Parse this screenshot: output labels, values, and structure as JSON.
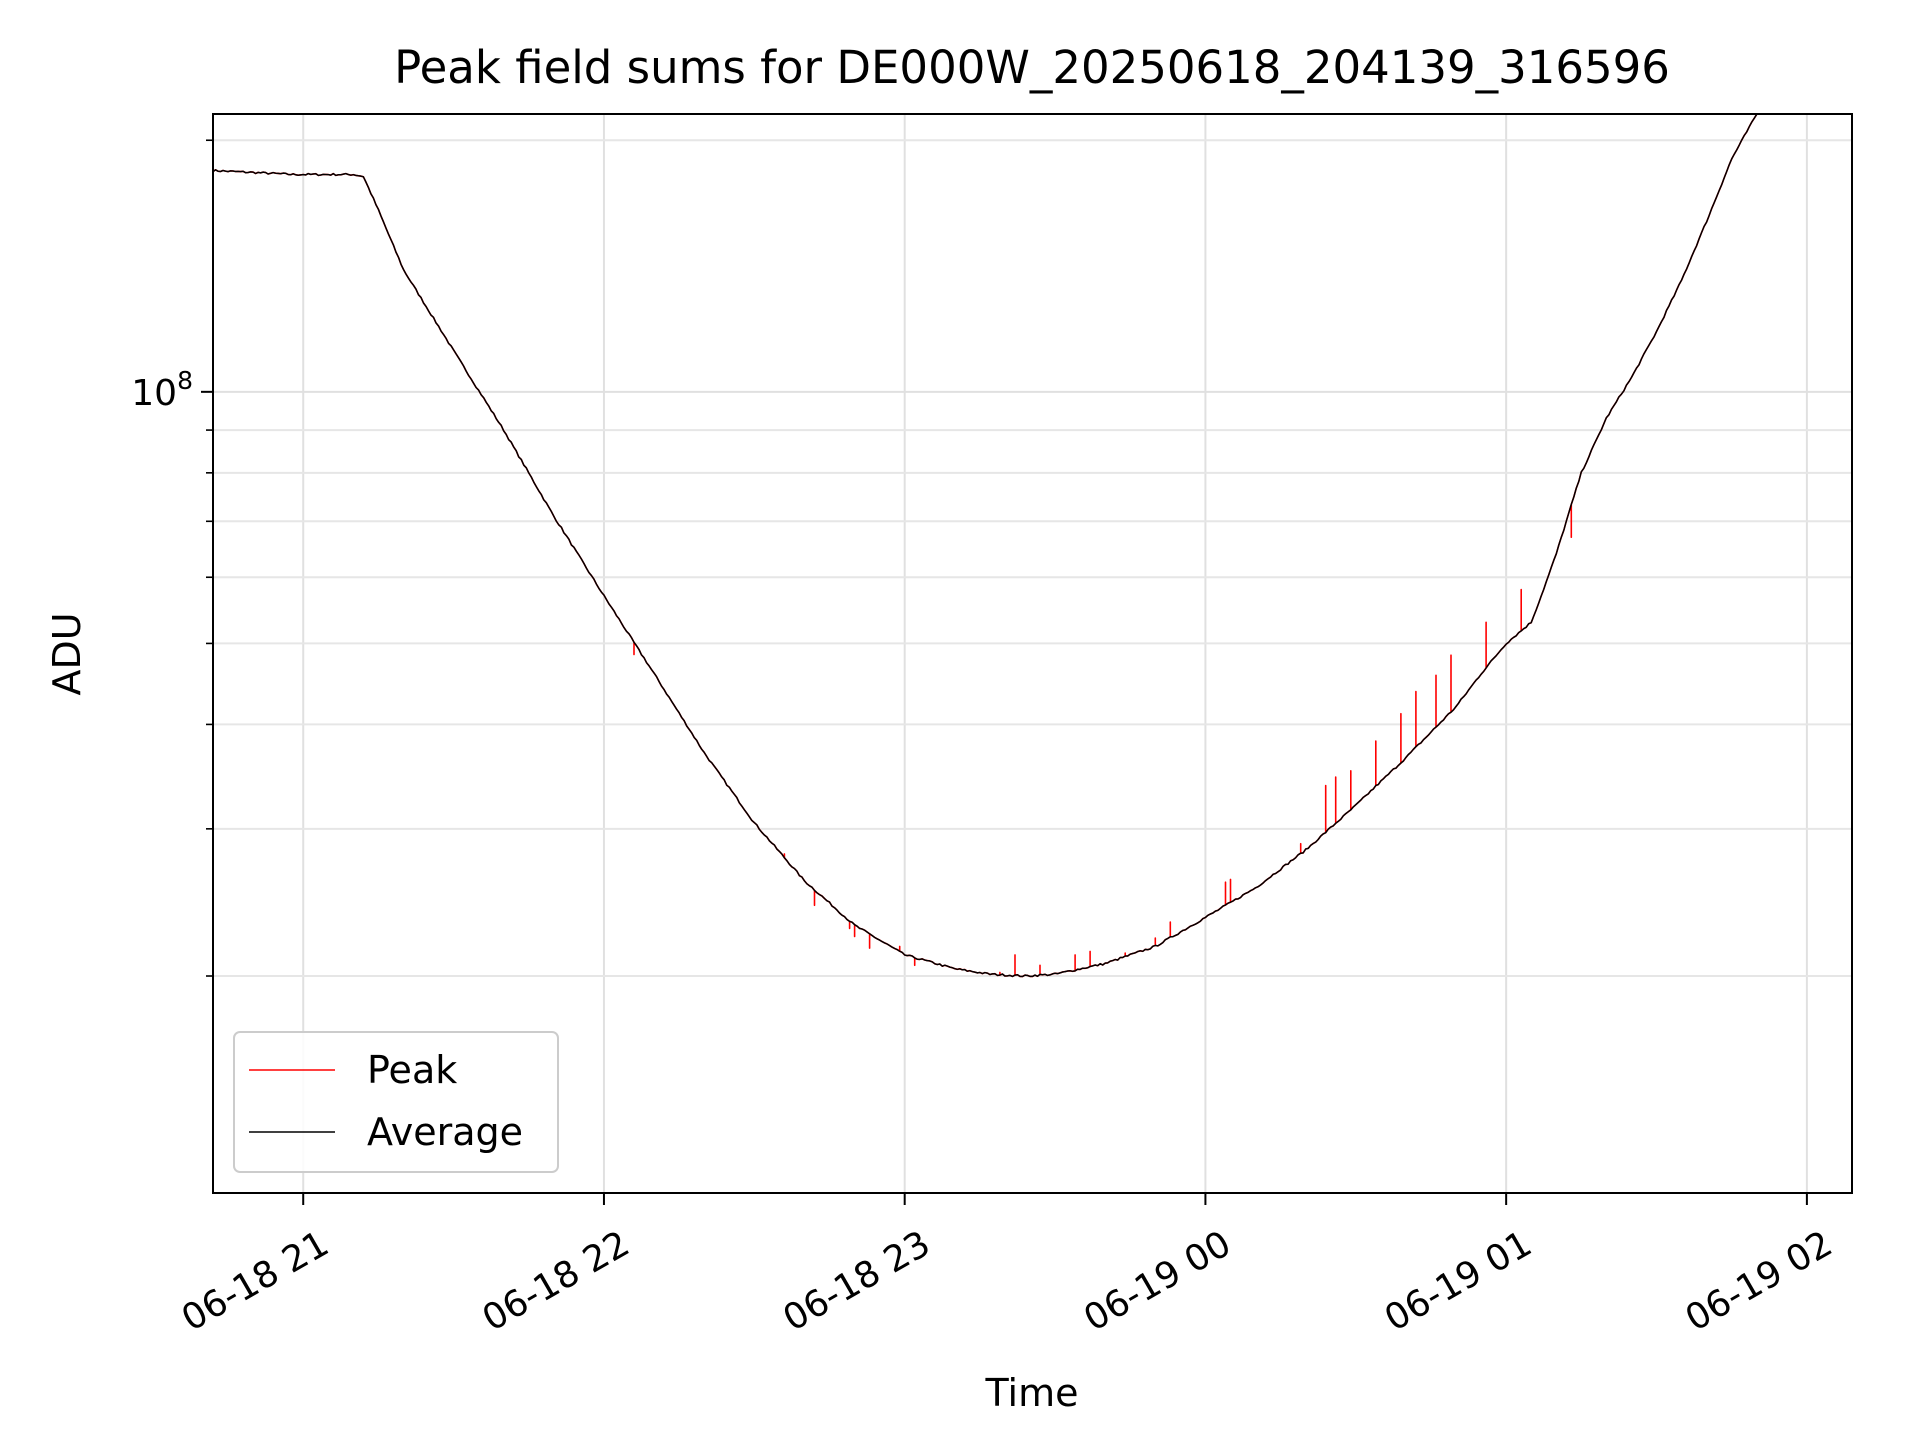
{
  "chart_data": {
    "type": "line",
    "title": "Peak field sums for DE000W_20250618_204139_316596",
    "xlabel": "Time",
    "ylabel": "ADU",
    "y_scale": "log",
    "grid": true,
    "legend_position": "lower-left",
    "xlim": [
      "06-18 20:42",
      "06-19 02:09"
    ],
    "ylim": [
      11000000,
      215000000
    ],
    "x_ticks": [
      "06-18 21",
      "06-18 22",
      "06-18 23",
      "06-19 00",
      "06-19 01",
      "06-19 02"
    ],
    "y_ticks": [
      {
        "value": 100000000,
        "base": "10",
        "exponent": "8"
      }
    ],
    "y_minor_ticks": [
      20000000,
      30000000,
      40000000,
      50000000,
      60000000,
      70000000,
      80000000,
      90000000,
      200000000
    ],
    "series": [
      {
        "name": "Peak",
        "color": "#ff0000"
      },
      {
        "name": "Average",
        "color": "#000000"
      }
    ],
    "average_points": [
      [
        "06-18 20:42",
        184000000
      ],
      [
        "06-18 20:50",
        183000000
      ],
      [
        "06-18 20:58",
        182000000
      ],
      [
        "06-18 21:10",
        182000000
      ],
      [
        "06-18 21:12",
        181000000
      ],
      [
        "06-18 21:15",
        165000000
      ],
      [
        "06-18 21:20",
        140000000
      ],
      [
        "06-18 21:30",
        112000000
      ],
      [
        "06-18 21:40",
        90000000
      ],
      [
        "06-18 21:50",
        71000000
      ],
      [
        "06-18 22:00",
        57000000
      ],
      [
        "06-18 22:10",
        46000000
      ],
      [
        "06-18 22:20",
        37000000
      ],
      [
        "06-18 22:30",
        30500000
      ],
      [
        "06-18 22:40",
        26000000
      ],
      [
        "06-18 22:50",
        23000000
      ],
      [
        "06-18 23:00",
        21200000
      ],
      [
        "06-18 23:10",
        20400000
      ],
      [
        "06-18 23:17",
        20100000
      ],
      [
        "06-18 23:24",
        20000000
      ],
      [
        "06-18 23:30",
        20100000
      ],
      [
        "06-18 23:40",
        20700000
      ],
      [
        "06-18 23:50",
        21700000
      ],
      [
        "06-19 00:00",
        23500000
      ],
      [
        "06-19 00:10",
        25500000
      ],
      [
        "06-19 00:20",
        28300000
      ],
      [
        "06-19 00:30",
        32000000
      ],
      [
        "06-19 00:40",
        36500000
      ],
      [
        "06-19 00:50",
        42000000
      ],
      [
        "06-19 00:55",
        46000000
      ],
      [
        "06-19 01:00",
        50000000
      ],
      [
        "06-19 01:05",
        53000000
      ],
      [
        "06-19 01:07",
        57000000
      ],
      [
        "06-19 01:10",
        64000000
      ],
      [
        "06-19 01:15",
        80000000
      ],
      [
        "06-19 01:20",
        93000000
      ],
      [
        "06-19 01:25",
        104000000
      ],
      [
        "06-19 01:30",
        118000000
      ],
      [
        "06-19 01:35",
        136000000
      ],
      [
        "06-19 01:40",
        160000000
      ],
      [
        "06-19 01:45",
        190000000
      ],
      [
        "06-19 01:50",
        215000000
      ]
    ],
    "peak_spikes": [
      [
        "06-18 22:06",
        48500000
      ],
      [
        "06-18 22:36",
        28000000
      ],
      [
        "06-18 22:42",
        24300000
      ],
      [
        "06-18 22:49",
        22800000
      ],
      [
        "06-18 22:50",
        22300000
      ],
      [
        "06-18 22:53",
        21600000
      ],
      [
        "06-18 22:59",
        21700000
      ],
      [
        "06-18 23:00",
        21200000
      ],
      [
        "06-18 23:02",
        20600000
      ],
      [
        "06-18 23:09",
        20500000
      ],
      [
        "06-18 23:19",
        20200000
      ],
      [
        "06-18 23:22",
        21200000
      ],
      [
        "06-18 23:27",
        20600000
      ],
      [
        "06-18 23:34",
        21200000
      ],
      [
        "06-18 23:37",
        21400000
      ],
      [
        "06-18 23:44",
        21300000
      ],
      [
        "06-18 23:50",
        22200000
      ],
      [
        "06-18 23:53",
        23200000
      ],
      [
        "06-19 00:04",
        25900000
      ],
      [
        "06-19 00:05",
        26100000
      ],
      [
        "06-19 00:19",
        28800000
      ],
      [
        "06-19 00:24",
        33800000
      ],
      [
        "06-19 00:26",
        34600000
      ],
      [
        "06-19 00:29",
        35200000
      ],
      [
        "06-19 00:34",
        38200000
      ],
      [
        "06-19 00:39",
        41200000
      ],
      [
        "06-19 00:42",
        43800000
      ],
      [
        "06-19 00:46",
        45800000
      ],
      [
        "06-19 00:49",
        48400000
      ],
      [
        "06-19 00:56",
        53000000
      ],
      [
        "06-19 01:03",
        58000000
      ],
      [
        "06-19 01:13",
        67000000
      ]
    ]
  }
}
